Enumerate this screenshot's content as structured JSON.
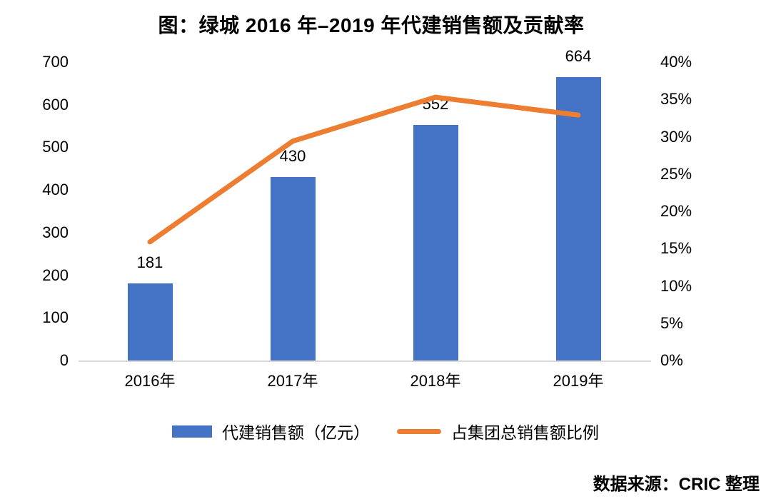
{
  "title": "图：绿城 2016 年–2019 年代建销售额及贡献率",
  "source": "数据来源：CRIC 整理",
  "colors": {
    "bar": "#4472C4",
    "line": "#ED7D31",
    "axis_line": "#D9D9D9",
    "text": "#000000",
    "background": "#FFFFFF"
  },
  "chart_data": {
    "type": "bar",
    "subtype": "combo-bar-line",
    "title": "图：绿城 2016 年–2019 年代建销售额及贡献率",
    "categories": [
      "2016年",
      "2017年",
      "2018年",
      "2019年"
    ],
    "series": [
      {
        "name": "代建销售额（亿元）",
        "type": "bar",
        "axis": "left",
        "color": "#4472C4",
        "values": [
          181,
          430,
          552,
          664
        ],
        "data_labels": [
          "181",
          "430",
          "552",
          "664"
        ]
      },
      {
        "name": "占集团总销售额比例",
        "type": "line",
        "axis": "right",
        "color": "#ED7D31",
        "unit": "%",
        "values": [
          15.9,
          29.4,
          35.3,
          32.9
        ]
      }
    ],
    "left_axis": {
      "min": 0,
      "max": 700,
      "step": 100
    },
    "right_axis": {
      "min": 0,
      "max": 40,
      "step": 5,
      "suffix": "%"
    },
    "grid": false,
    "legend_position": "bottom",
    "xlabel": "",
    "ylabel_left": "",
    "ylabel_right": ""
  }
}
